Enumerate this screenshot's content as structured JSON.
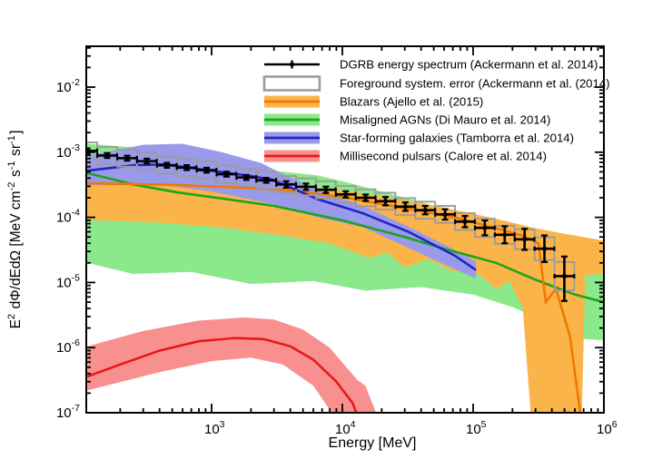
{
  "chart_data": {
    "type": "line",
    "title": "",
    "xlabel": "Energy [MeV]",
    "ylabel_parts": [
      {
        "t": "E"
      },
      {
        "s": "2"
      },
      {
        "t": " dΦ/dEdΩ [MeV cm"
      },
      {
        "s": "-2"
      },
      {
        "t": " s"
      },
      {
        "s": "-1"
      },
      {
        "t": " sr"
      },
      {
        "s": "-1"
      },
      {
        "t": "]"
      }
    ],
    "grid": false,
    "legend_position": "top-right-inside",
    "x_axis": {
      "scale": "log",
      "min_log": 2.0417,
      "max_log": 6,
      "major_exponents": [
        3,
        4,
        5,
        6
      ]
    },
    "y_axis": {
      "scale": "log",
      "min_log": -7,
      "max_log": -1.373,
      "major_exponents": [
        -2,
        -3,
        -4,
        -5,
        -6,
        -7
      ]
    },
    "dgrb_points_format": [
      "energy_MeV",
      "e2_flux",
      "err_lo_factor",
      "err_hi_factor",
      "syst_box_factor"
    ],
    "dgrb_points": [
      [
        112,
        0.00105,
        1.09,
        1.09,
        1.35
      ],
      [
        159,
        0.00089,
        1.09,
        1.09,
        1.35
      ],
      [
        226,
        0.00081,
        1.09,
        1.09,
        1.35
      ],
      [
        320,
        0.00073,
        1.09,
        1.09,
        1.35
      ],
      [
        455,
        0.00063,
        1.09,
        1.09,
        1.35
      ],
      [
        645,
        0.00058,
        1.09,
        1.09,
        1.35
      ],
      [
        916,
        0.00053,
        1.09,
        1.09,
        1.35
      ],
      [
        1300,
        0.00046,
        1.09,
        1.09,
        1.35
      ],
      [
        1845,
        0.00041,
        1.09,
        1.09,
        1.35
      ],
      [
        2618,
        0.00037,
        1.09,
        1.09,
        1.35
      ],
      [
        3715,
        0.00032,
        1.12,
        1.12,
        1.35
      ],
      [
        5272,
        0.000295,
        1.12,
        1.12,
        1.35
      ],
      [
        7480,
        0.000265,
        1.12,
        1.12,
        1.35
      ],
      [
        10614,
        0.000225,
        1.12,
        1.12,
        1.35
      ],
      [
        15060,
        0.0002,
        1.12,
        1.12,
        1.35
      ],
      [
        21370,
        0.000177,
        1.16,
        1.16,
        1.35
      ],
      [
        30320,
        0.000146,
        1.16,
        1.16,
        1.35
      ],
      [
        43020,
        0.000129,
        1.16,
        1.16,
        1.35
      ],
      [
        61050,
        0.000111,
        1.2,
        1.2,
        1.35
      ],
      [
        86620,
        8.6e-05,
        1.22,
        1.22,
        1.35
      ],
      [
        122900,
        6.9e-05,
        1.3,
        1.3,
        1.38
      ],
      [
        174400,
        5.4e-05,
        1.35,
        1.35,
        1.38
      ],
      [
        247500,
        4.6e-05,
        1.45,
        1.45,
        1.42
      ],
      [
        351200,
        3.3e-05,
        1.6,
        1.6,
        1.5
      ],
      [
        498300,
        1.25e-05,
        2.4,
        2.0,
        1.65
      ]
    ],
    "bin_half_width_factor": 1.19,
    "bands": [
      {
        "id": "misaligned-agn",
        "label": "Misaligned AGNs (Di Mauro et al. 2014)",
        "band_color": "#8BE88B",
        "line_color": "#1DA31D",
        "hi": [
          [
            112,
            0.00135
          ],
          [
            430,
            0.0011
          ],
          [
            1000,
            0.0008
          ],
          [
            3000,
            0.00052
          ],
          [
            6500,
            0.00044
          ],
          [
            10000,
            0.00036
          ],
          [
            30000,
            0.0002
          ],
          [
            100000,
            0.000105
          ],
          [
            300000,
            4.5e-05
          ],
          [
            600000,
            2.6e-05
          ],
          [
            1000000,
            1.9e-05
          ]
        ],
        "lo": [
          [
            112,
            2e-05
          ],
          [
            250,
            1.35e-05
          ],
          [
            700,
            1.45e-05
          ],
          [
            2000,
            9.5e-06
          ],
          [
            6000,
            1.05e-05
          ],
          [
            15000,
            7.5e-06
          ],
          [
            40000,
            8.5e-06
          ],
          [
            100000,
            6.5e-06
          ],
          [
            200000,
            4.2e-06
          ],
          [
            400000,
            2.3e-06
          ],
          [
            700000,
            1.35e-06
          ],
          [
            1000000,
            1.3e-06
          ]
        ],
        "line": [
          [
            112,
            0.00048
          ],
          [
            250,
            0.00032
          ],
          [
            560,
            0.00024
          ],
          [
            1200,
            0.000195
          ],
          [
            3000,
            0.00015
          ],
          [
            10000,
            9e-05
          ],
          [
            30000,
            5e-05
          ],
          [
            60000,
            3.3e-05
          ],
          [
            150000,
            2e-05
          ],
          [
            300000,
            1.1e-05
          ],
          [
            600000,
            6.5e-06
          ],
          [
            1000000,
            5e-06
          ]
        ]
      },
      {
        "id": "blazars",
        "label": "Blazars (Ajello et al. (2015)",
        "band_color": "#FBB449",
        "line_color": "#F07800",
        "hi": [
          [
            112,
            0.00037
          ],
          [
            500,
            0.00035
          ],
          [
            1500,
            0.00033
          ],
          [
            4000,
            0.00031
          ],
          [
            10000,
            0.00026
          ],
          [
            20000,
            0.00021
          ],
          [
            40000,
            0.000165
          ],
          [
            80000,
            0.000125
          ],
          [
            150000,
            9.5e-05
          ],
          [
            300000,
            6.8e-05
          ],
          [
            500000,
            5.6e-05
          ],
          [
            1000000,
            4.4e-05
          ]
        ],
        "lo": [
          [
            112,
            9.2e-05
          ],
          [
            400,
            8.3e-05
          ],
          [
            1200,
            7e-05
          ],
          [
            3000,
            5.5e-05
          ],
          [
            8000,
            4e-05
          ],
          [
            16000,
            2.4e-05
          ],
          [
            22000,
            2.9e-05
          ],
          [
            30000,
            1.7e-05
          ],
          [
            45000,
            2.3e-05
          ],
          [
            70000,
            1.5e-05
          ],
          [
            110000,
            1.35e-05
          ],
          [
            150000,
            8e-06
          ],
          [
            190000,
            1.05e-05
          ],
          [
            240000,
            4e-06
          ],
          [
            300000,
            1e-08
          ],
          [
            660000,
            1e-08
          ],
          [
            720000,
            1.3e-05
          ],
          [
            1000000,
            1.35e-05
          ]
        ],
        "line": [
          [
            112,
            0.000335
          ],
          [
            500,
            0.000315
          ],
          [
            1500,
            0.00029
          ],
          [
            4000,
            0.00026
          ],
          [
            10000,
            0.000205
          ],
          [
            20000,
            0.00016
          ],
          [
            40000,
            0.000125
          ],
          [
            80000,
            9.5e-05
          ],
          [
            150000,
            6.8e-05
          ],
          [
            240000,
            5.2e-05
          ],
          [
            316000,
            4e-05
          ],
          [
            360000,
            5e-06
          ],
          [
            430000,
            8e-06
          ],
          [
            550000,
            1.5e-06
          ],
          [
            660000,
            1e-07
          ]
        ]
      },
      {
        "id": "star-forming-galaxies",
        "label": "Star-forming galaxies (Tamborra et al. 2014)",
        "band_color": "#9A9AEA",
        "line_color": "#2224C4",
        "hi": [
          [
            112,
            0.00088
          ],
          [
            300,
            0.0013
          ],
          [
            600,
            0.00135
          ],
          [
            1200,
            0.001
          ],
          [
            2400,
            0.00068
          ],
          [
            2900,
            0.00056
          ],
          [
            6500,
            0.00026
          ],
          [
            14500,
            0.00015
          ],
          [
            32000,
            7.2e-05
          ],
          [
            72000,
            3.2e-05
          ],
          [
            105000,
            2.1e-05
          ]
        ],
        "lo": [
          [
            112,
            0.00031
          ],
          [
            430,
            0.00031
          ],
          [
            1000,
            0.00025
          ],
          [
            2900,
            0.00016
          ],
          [
            6500,
            0.0001
          ],
          [
            14500,
            7e-05
          ],
          [
            32000,
            3.4e-05
          ],
          [
            72000,
            1.6e-05
          ],
          [
            105000,
            1.15e-05
          ]
        ],
        "line": [
          [
            112,
            0.00052
          ],
          [
            250,
            0.00063
          ],
          [
            430,
            0.00065
          ],
          [
            1000,
            0.00052
          ],
          [
            2000,
            0.00043
          ],
          [
            2900,
            0.00038
          ],
          [
            6500,
            0.00019
          ],
          [
            14500,
            0.000115
          ],
          [
            32000,
            6e-05
          ],
          [
            72000,
            2.6e-05
          ],
          [
            105000,
            1.55e-05
          ]
        ]
      },
      {
        "id": "millisecond-pulsars",
        "label": "Millisecond pulsars (Calore et al. 2014)",
        "band_color": "#F99090",
        "line_color": "#E8191C",
        "hi": [
          [
            112,
            1.05e-06
          ],
          [
            300,
            1.8e-06
          ],
          [
            800,
            2.6e-06
          ],
          [
            1800,
            2.9e-06
          ],
          [
            3000,
            2.7e-06
          ],
          [
            5000,
            1.9e-06
          ],
          [
            8000,
            1e-06
          ],
          [
            13000,
            3.2e-07
          ],
          [
            15000,
            2.6e-07
          ],
          [
            20000,
            6e-08
          ],
          [
            21000,
            1e-08
          ]
        ],
        "lo": [
          [
            112,
            2.2e-07
          ],
          [
            400,
            4.2e-07
          ],
          [
            1000,
            6.2e-07
          ],
          [
            2000,
            7e-07
          ],
          [
            3500,
            5.5e-07
          ],
          [
            6000,
            2.6e-07
          ],
          [
            8300,
            1e-07
          ],
          [
            9500,
            3e-08
          ],
          [
            10500,
            1e-08
          ],
          [
            21000,
            1e-08
          ]
        ],
        "line": [
          [
            112,
            3.6e-07
          ],
          [
            200,
            5.5e-07
          ],
          [
            400,
            9e-07
          ],
          [
            800,
            1.25e-06
          ],
          [
            1500,
            1.4e-06
          ],
          [
            2500,
            1.35e-06
          ],
          [
            4000,
            1.05e-06
          ],
          [
            6000,
            6.5e-07
          ],
          [
            9000,
            3e-07
          ],
          [
            12000,
            1.4e-07
          ],
          [
            14500,
            5e-08
          ]
        ]
      }
    ],
    "legend": {
      "entries": [
        {
          "label": "DGRB energy spectrum (Ackermann et al. 2014)",
          "type": "marker-line",
          "color": "#000000"
        },
        {
          "label": "Foreground system. error (Ackermann et al. (2014)",
          "type": "open-box",
          "color": "#9c9c9c"
        },
        {
          "label": "Blazars (Ajello et al. (2015)",
          "type": "band",
          "band_color": "#FBB449",
          "line_color": "#F07800"
        },
        {
          "label": "Misaligned AGNs (Di Mauro et al. 2014)",
          "type": "band",
          "band_color": "#8BE88B",
          "line_color": "#1DA31D"
        },
        {
          "label": "Star-forming galaxies (Tamborra et al. 2014)",
          "type": "band",
          "band_color": "#9A9AEA",
          "line_color": "#2224C4"
        },
        {
          "label": "Millisecond pulsars (Calore et al. 2014)",
          "type": "band",
          "band_color": "#F99090",
          "line_color": "#E8191C"
        }
      ]
    },
    "colors": {
      "frame": "#000000",
      "syst_box": "#9c9c9c",
      "data": "#000000"
    }
  }
}
